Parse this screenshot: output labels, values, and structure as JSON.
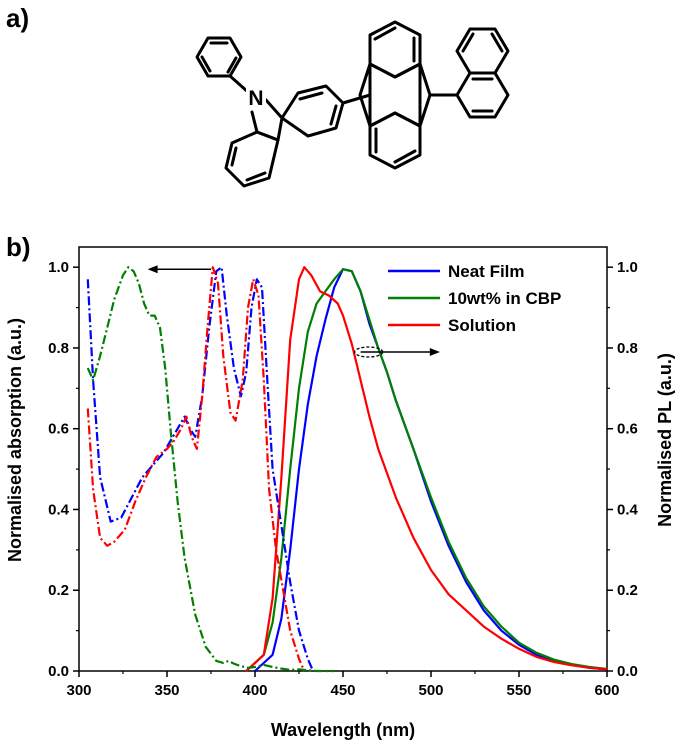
{
  "panels": {
    "a": "a)",
    "b": "b)"
  },
  "molecule": {
    "atom_n": "N"
  },
  "chart_data": {
    "type": "line",
    "xlabel": "Wavelength (nm)",
    "ylabel_left": "Normalised absorption (a.u.)",
    "ylabel_right": "Normalised PL (a.u.)",
    "xlim": [
      300,
      600
    ],
    "ylim": [
      0,
      1.05
    ],
    "x_ticks": [
      300,
      350,
      400,
      450,
      500,
      550,
      600
    ],
    "y_ticks": [
      0.0,
      0.2,
      0.4,
      0.6,
      0.8,
      1.0
    ],
    "legend_position": "top-right",
    "grid": false,
    "series": [
      {
        "name": "Neat Film",
        "color": "#0000ff",
        "kind": "PL",
        "x": [
          400,
          410,
          415,
          420,
          425,
          430,
          435,
          440,
          445,
          450,
          455,
          460,
          465,
          470,
          475,
          480,
          490,
          500,
          510,
          520,
          530,
          540,
          550,
          560,
          570,
          580,
          590,
          600
        ],
        "y": [
          0.0,
          0.04,
          0.13,
          0.3,
          0.5,
          0.66,
          0.78,
          0.87,
          0.95,
          0.995,
          0.99,
          0.94,
          0.86,
          0.8,
          0.74,
          0.67,
          0.55,
          0.42,
          0.31,
          0.22,
          0.15,
          0.1,
          0.065,
          0.04,
          0.025,
          0.015,
          0.008,
          0.004
        ]
      },
      {
        "name": "10wt% in CBP",
        "color": "#008000",
        "kind": "PL",
        "x": [
          395,
          405,
          410,
          415,
          420,
          425,
          430,
          435,
          440,
          445,
          450,
          455,
          460,
          465,
          470,
          475,
          480,
          490,
          500,
          510,
          520,
          530,
          540,
          550,
          560,
          570,
          580,
          590,
          600
        ],
        "y": [
          0.0,
          0.04,
          0.12,
          0.28,
          0.5,
          0.7,
          0.84,
          0.91,
          0.94,
          0.97,
          0.995,
          0.99,
          0.94,
          0.87,
          0.8,
          0.74,
          0.67,
          0.55,
          0.43,
          0.32,
          0.23,
          0.16,
          0.11,
          0.07,
          0.045,
          0.028,
          0.017,
          0.01,
          0.005
        ]
      },
      {
        "name": "Solution",
        "color": "#ff0000",
        "kind": "PL",
        "x": [
          395,
          405,
          410,
          415,
          420,
          425,
          428,
          432,
          437,
          442,
          447,
          450,
          455,
          460,
          465,
          470,
          480,
          490,
          500,
          510,
          520,
          530,
          540,
          550,
          560,
          570,
          580,
          590,
          600
        ],
        "y": [
          0.0,
          0.04,
          0.18,
          0.48,
          0.82,
          0.97,
          1.0,
          0.98,
          0.94,
          0.93,
          0.91,
          0.88,
          0.81,
          0.72,
          0.63,
          0.55,
          0.43,
          0.33,
          0.25,
          0.19,
          0.15,
          0.11,
          0.08,
          0.055,
          0.035,
          0.022,
          0.014,
          0.008,
          0.004
        ]
      },
      {
        "name": "",
        "color": "#0000ff",
        "kind": "absorption",
        "x": [
          305,
          308,
          312,
          318,
          324,
          330,
          336,
          342,
          348,
          352,
          356,
          360,
          363,
          366,
          370,
          374,
          378,
          381,
          384,
          388,
          392,
          395,
          398,
          401,
          404,
          407,
          410,
          415,
          420,
          425,
          430,
          433
        ],
        "y": [
          0.97,
          0.72,
          0.48,
          0.37,
          0.38,
          0.43,
          0.48,
          0.51,
          0.54,
          0.57,
          0.6,
          0.63,
          0.6,
          0.58,
          0.68,
          0.85,
          0.99,
          1.0,
          0.88,
          0.75,
          0.68,
          0.74,
          0.9,
          0.97,
          0.95,
          0.72,
          0.5,
          0.36,
          0.22,
          0.1,
          0.03,
          0.0
        ]
      },
      {
        "name": "",
        "color": "#ff0000",
        "kind": "absorption",
        "x": [
          305,
          308,
          312,
          316,
          320,
          326,
          332,
          338,
          344,
          350,
          354,
          358,
          361,
          364,
          367,
          370,
          373,
          376,
          379,
          382,
          386,
          389,
          393,
          396,
          399,
          402,
          405,
          408,
          412,
          416,
          420,
          425,
          428
        ],
        "y": [
          0.65,
          0.45,
          0.33,
          0.31,
          0.32,
          0.35,
          0.42,
          0.48,
          0.53,
          0.55,
          0.57,
          0.6,
          0.63,
          0.58,
          0.55,
          0.68,
          0.85,
          1.0,
          0.96,
          0.78,
          0.64,
          0.62,
          0.72,
          0.9,
          0.97,
          0.93,
          0.72,
          0.45,
          0.3,
          0.2,
          0.1,
          0.03,
          0.0
        ]
      },
      {
        "name": "",
        "color": "#008000",
        "kind": "absorption",
        "x": [
          305,
          308,
          312,
          316,
          320,
          325,
          328,
          331,
          334,
          337,
          340,
          343,
          346,
          349,
          352,
          356,
          360,
          366,
          372,
          378,
          382,
          385,
          388,
          392,
          396,
          400,
          405,
          410,
          415,
          420,
          425,
          430,
          435,
          440,
          445
        ],
        "y": [
          0.75,
          0.72,
          0.78,
          0.85,
          0.92,
          0.98,
          1.0,
          0.99,
          0.96,
          0.91,
          0.88,
          0.88,
          0.85,
          0.75,
          0.6,
          0.42,
          0.28,
          0.14,
          0.06,
          0.025,
          0.02,
          0.025,
          0.018,
          0.012,
          0.008,
          0.01,
          0.015,
          0.01,
          0.006,
          0.003,
          0.004,
          0.002,
          0.0,
          0.0,
          0.0
        ]
      }
    ],
    "annotations": [
      {
        "type": "arrow-left",
        "x": [
          375,
          339
        ],
        "y": 0.995
      },
      {
        "type": "arrow-right-ellipse",
        "x": [
          460,
          505
        ],
        "y": 0.79
      }
    ]
  }
}
